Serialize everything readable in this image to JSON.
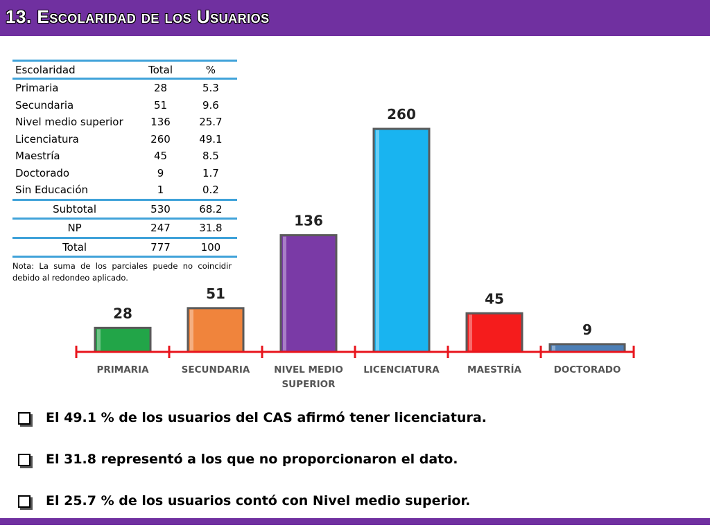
{
  "header": {
    "title": "13. Escolaridad de los Usuarios"
  },
  "table": {
    "columns": [
      "Escolaridad",
      "Total",
      "%"
    ],
    "rows": [
      [
        "Primaria",
        "28",
        "5.3"
      ],
      [
        "Secundaria",
        "51",
        "9.6"
      ],
      [
        "Nivel medio superior",
        "136",
        "25.7"
      ],
      [
        "Licenciatura",
        "260",
        "49.1"
      ],
      [
        "Maestría",
        "45",
        "8.5"
      ],
      [
        "Doctorado",
        "9",
        "1.7"
      ],
      [
        "Sin Educación",
        "1",
        "0.2"
      ]
    ],
    "subtotal": [
      "Subtotal",
      "530",
      "68.2"
    ],
    "np": [
      "NP",
      "247",
      "31.8"
    ],
    "total": [
      "Total",
      "777",
      "100"
    ],
    "note": "Nota: La suma de los parciales puede no coincidir debido al redondeo aplicado."
  },
  "chart_data": {
    "type": "bar",
    "categories": [
      "PRIMARIA",
      "SECUNDARIA",
      "NIVEL MEDIO SUPERIOR",
      "LICENCIATURA",
      "MAESTRÍA",
      "DOCTORADO"
    ],
    "values": [
      28,
      51,
      136,
      260,
      45,
      9
    ],
    "colors": [
      "#22a548",
      "#f0843c",
      "#7a3aa6",
      "#19b4f0",
      "#f51c1c",
      "#4d7fb6"
    ],
    "axis_color": "#e8141c",
    "title": "",
    "xlabel": "",
    "ylabel": "",
    "ylim": [
      0,
      260
    ],
    "grid": false,
    "legend": "none"
  },
  "bullets": [
    "El 49.1 % de los usuarios del CAS afirmó tener licenciatura.",
    "El 31.8 representó a los que no proporcionaron el dato.",
    "El 25.7 % de los usuarios contó con Nivel medio superior."
  ],
  "icons": {
    "bullet": "checkbox-square-icon"
  }
}
